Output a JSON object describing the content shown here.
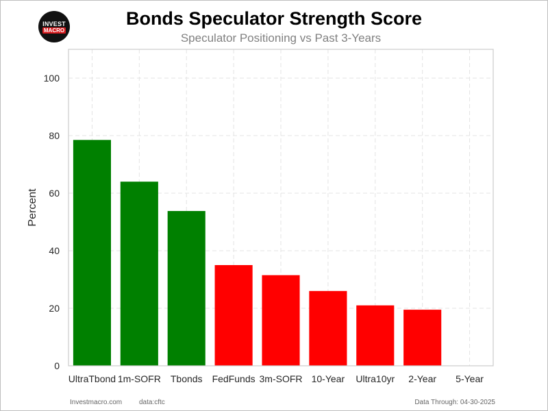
{
  "logo": {
    "line1": "INVEST",
    "line2": "MACRO"
  },
  "footer": {
    "site": "Investmacro.com",
    "source": "data:cftc",
    "date_text": "Data Through: 04-30-2025"
  },
  "colors": {
    "positive": "#008000",
    "negative": "#ff0000"
  },
  "chart_data": {
    "type": "bar",
    "title": "Bonds Speculator Strength Score",
    "subtitle": "Speculator Positioning vs Past 3-Years",
    "xlabel": "",
    "ylabel": "Percent",
    "categories": [
      "UltraTbond",
      "1m-SOFR",
      "Tbonds",
      "FedFunds",
      "3m-SOFR",
      "10-Year",
      "Ultra10yr",
      "2-Year",
      "5-Year"
    ],
    "values": [
      78.5,
      64.0,
      53.8,
      35.0,
      31.5,
      26.0,
      21.0,
      19.5,
      0
    ],
    "bar_colors": [
      "#008000",
      "#008000",
      "#008000",
      "#ff0000",
      "#ff0000",
      "#ff0000",
      "#ff0000",
      "#ff0000",
      "#ff0000"
    ],
    "ylim": [
      0,
      110
    ],
    "yticks": [
      0,
      20,
      40,
      60,
      80,
      100
    ],
    "grid": true
  }
}
